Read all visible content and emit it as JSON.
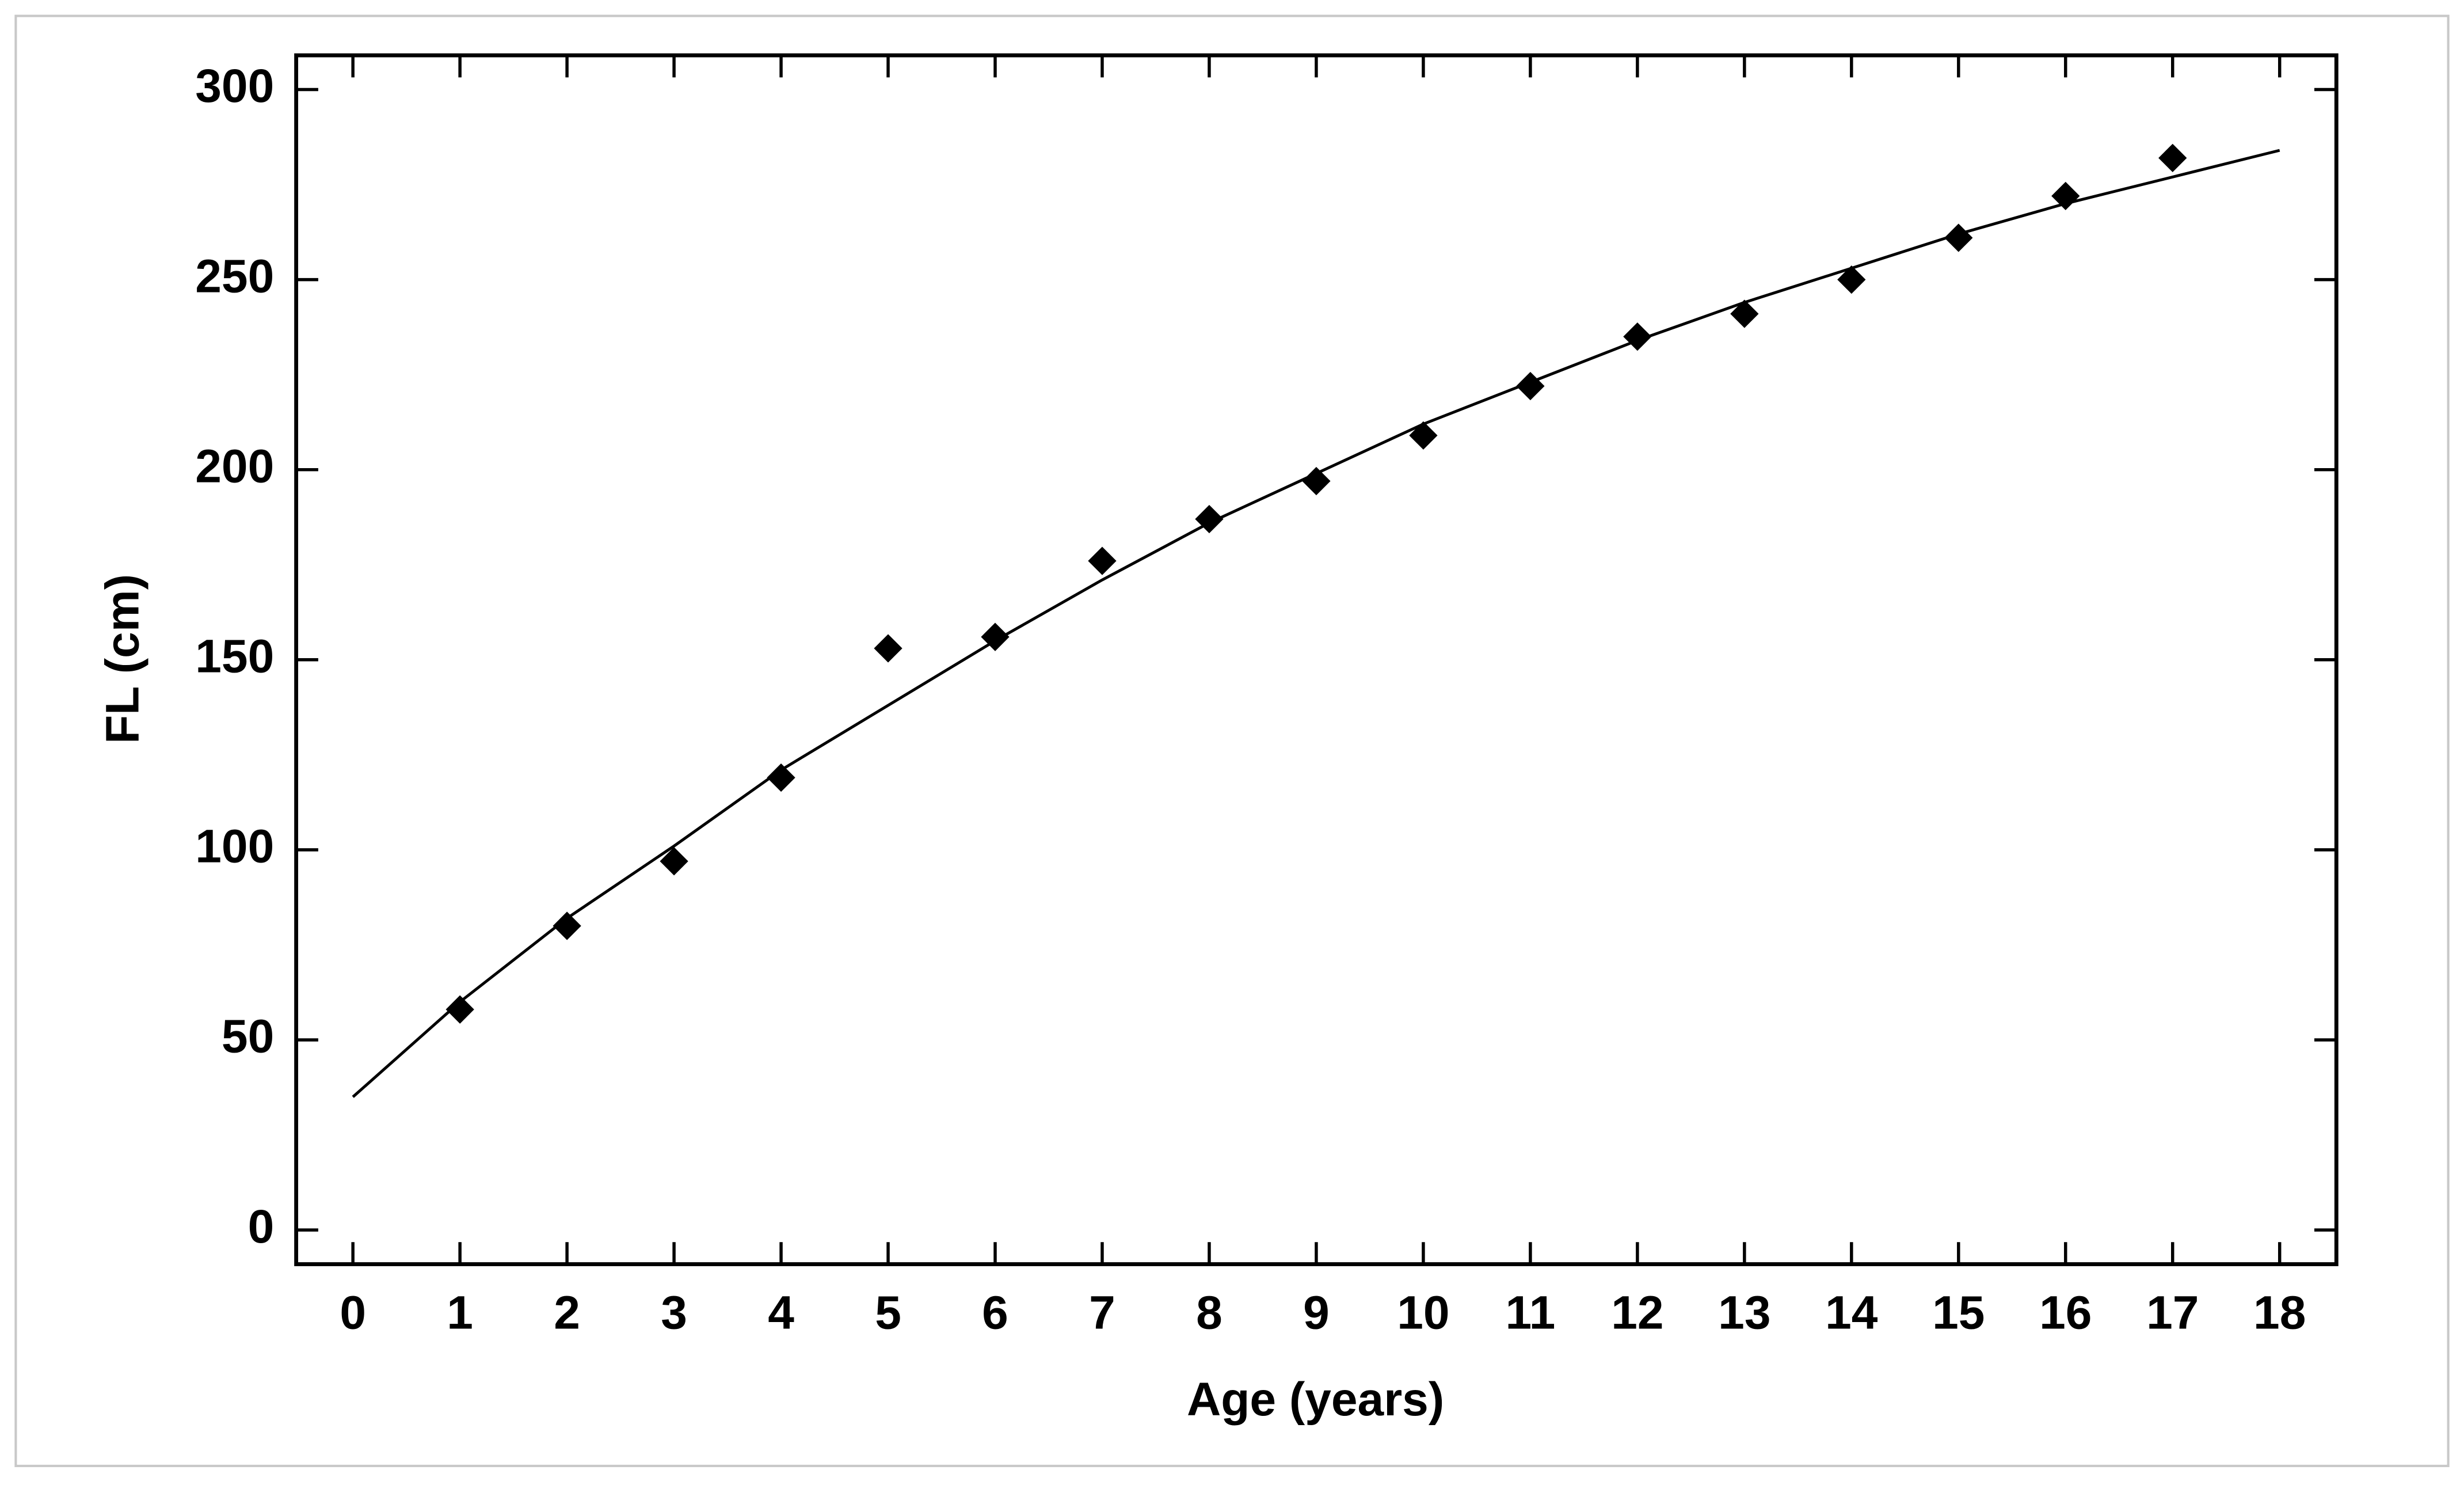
{
  "chart_data": {
    "type": "scatter",
    "xlabel": "Age (years)",
    "ylabel": "FL (cm)",
    "xlim": [
      -0.53,
      18.53
    ],
    "ylim": [
      -9,
      309
    ],
    "xticks": [
      0,
      1,
      2,
      3,
      4,
      5,
      6,
      7,
      8,
      9,
      10,
      11,
      12,
      13,
      14,
      15,
      16,
      17,
      18
    ],
    "yticks": [
      0,
      50,
      100,
      150,
      200,
      250,
      300
    ],
    "series": [
      {
        "type": "scatter",
        "color": "#000000",
        "x": [
          1,
          2,
          3,
          4,
          5,
          6,
          7,
          8,
          9,
          10,
          11,
          12,
          13,
          14,
          15,
          16,
          17
        ],
        "values": [
          58,
          80,
          97,
          119,
          153,
          156,
          176,
          187,
          197,
          209,
          222,
          235,
          241,
          250,
          261,
          272,
          282
        ]
      },
      {
        "type": "line",
        "color": "#000000",
        "x": [
          0,
          1,
          2,
          3,
          4,
          5,
          6,
          7,
          8,
          9,
          10,
          11,
          12,
          13,
          14,
          15,
          16,
          17,
          18
        ],
        "values": [
          35,
          60,
          82,
          101,
          121,
          138,
          155,
          171,
          186,
          199,
          212,
          223,
          234,
          244,
          253,
          262,
          270,
          277,
          284
        ]
      }
    ]
  }
}
